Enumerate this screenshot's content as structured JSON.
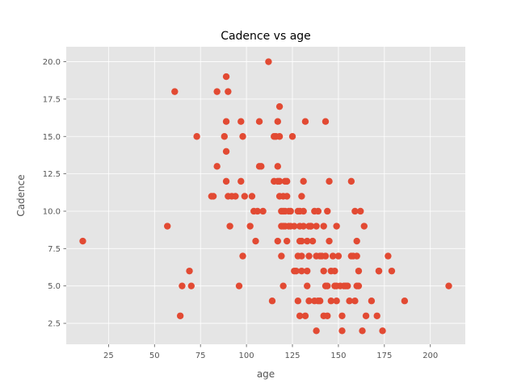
{
  "chart_data": {
    "type": "scatter",
    "title": "Cadence vs age",
    "xlabel": "age",
    "ylabel": "Cadence",
    "xlim": [
      2,
      219
    ],
    "ylim": [
      1.1,
      21.0
    ],
    "xticks": [
      25,
      50,
      75,
      100,
      125,
      150,
      175,
      200
    ],
    "yticks": [
      2.5,
      5.0,
      7.5,
      10.0,
      12.5,
      15.0,
      17.5,
      20.0
    ],
    "grid": true,
    "style": "ggplot",
    "colors": {
      "marker": "#E24A33",
      "plot_bg": "#E5E5E5",
      "grid": "#FFFFFF",
      "text": "#555555"
    },
    "series": [
      {
        "x": [
          11,
          57,
          61,
          64,
          65,
          69,
          70,
          73,
          81,
          82,
          84,
          84,
          88,
          89,
          89,
          89,
          89,
          90,
          90,
          91,
          92,
          94,
          96,
          97,
          97,
          98,
          98,
          99,
          102,
          103,
          104,
          105,
          106,
          107,
          107,
          108,
          109,
          112,
          114,
          115,
          115,
          116,
          117,
          117,
          117,
          117,
          118,
          118,
          118,
          118,
          119,
          119,
          119,
          120,
          120,
          120,
          120,
          121,
          121,
          121,
          122,
          122,
          122,
          123,
          123,
          124,
          124,
          125,
          126,
          126,
          127,
          128,
          128,
          128,
          129,
          129,
          129,
          129,
          130,
          130,
          130,
          130,
          131,
          131,
          131,
          132,
          132,
          133,
          133,
          133,
          134,
          134,
          134,
          135,
          135,
          135,
          136,
          137,
          137,
          138,
          138,
          138,
          139,
          139,
          140,
          140,
          141,
          142,
          142,
          142,
          143,
          143,
          143,
          144,
          144,
          144,
          145,
          145,
          146,
          146,
          147,
          148,
          148,
          149,
          149,
          149,
          150,
          151,
          152,
          152,
          153,
          154,
          155,
          156,
          157,
          157,
          158,
          159,
          159,
          160,
          160,
          160,
          161,
          161,
          162,
          163,
          164,
          165,
          168,
          171,
          172,
          172,
          174,
          177,
          179,
          186,
          210
        ],
        "y": [
          8,
          9,
          18,
          3,
          5,
          6,
          5,
          15,
          11,
          11,
          13,
          18,
          15,
          16,
          19,
          12,
          14,
          18,
          11,
          9,
          11,
          11,
          5,
          12,
          16,
          7,
          15,
          11,
          9,
          11,
          10,
          8,
          10,
          16,
          13,
          13,
          10,
          20,
          4,
          15,
          12,
          15,
          12,
          13,
          8,
          16,
          15,
          17,
          11,
          12,
          9,
          10,
          7,
          5,
          9,
          10,
          11,
          12,
          10,
          9,
          11,
          12,
          8,
          10,
          9,
          9,
          10,
          15,
          9,
          6,
          6,
          10,
          7,
          4,
          3,
          10,
          9,
          8,
          6,
          11,
          7,
          8,
          10,
          12,
          9,
          16,
          3,
          8,
          5,
          6,
          9,
          7,
          4,
          9,
          9,
          9,
          8,
          10,
          4,
          7,
          2,
          9,
          4,
          10,
          4,
          7,
          7,
          9,
          6,
          3,
          16,
          5,
          7,
          3,
          5,
          10,
          8,
          12,
          6,
          4,
          7,
          6,
          5,
          9,
          4,
          5,
          7,
          5,
          2,
          3,
          5,
          5,
          5,
          4,
          7,
          12,
          7,
          4,
          10,
          8,
          7,
          5,
          6,
          5,
          10,
          2,
          9,
          3,
          4,
          3,
          6,
          6,
          2,
          7,
          6,
          4,
          5
        ]
      }
    ]
  }
}
